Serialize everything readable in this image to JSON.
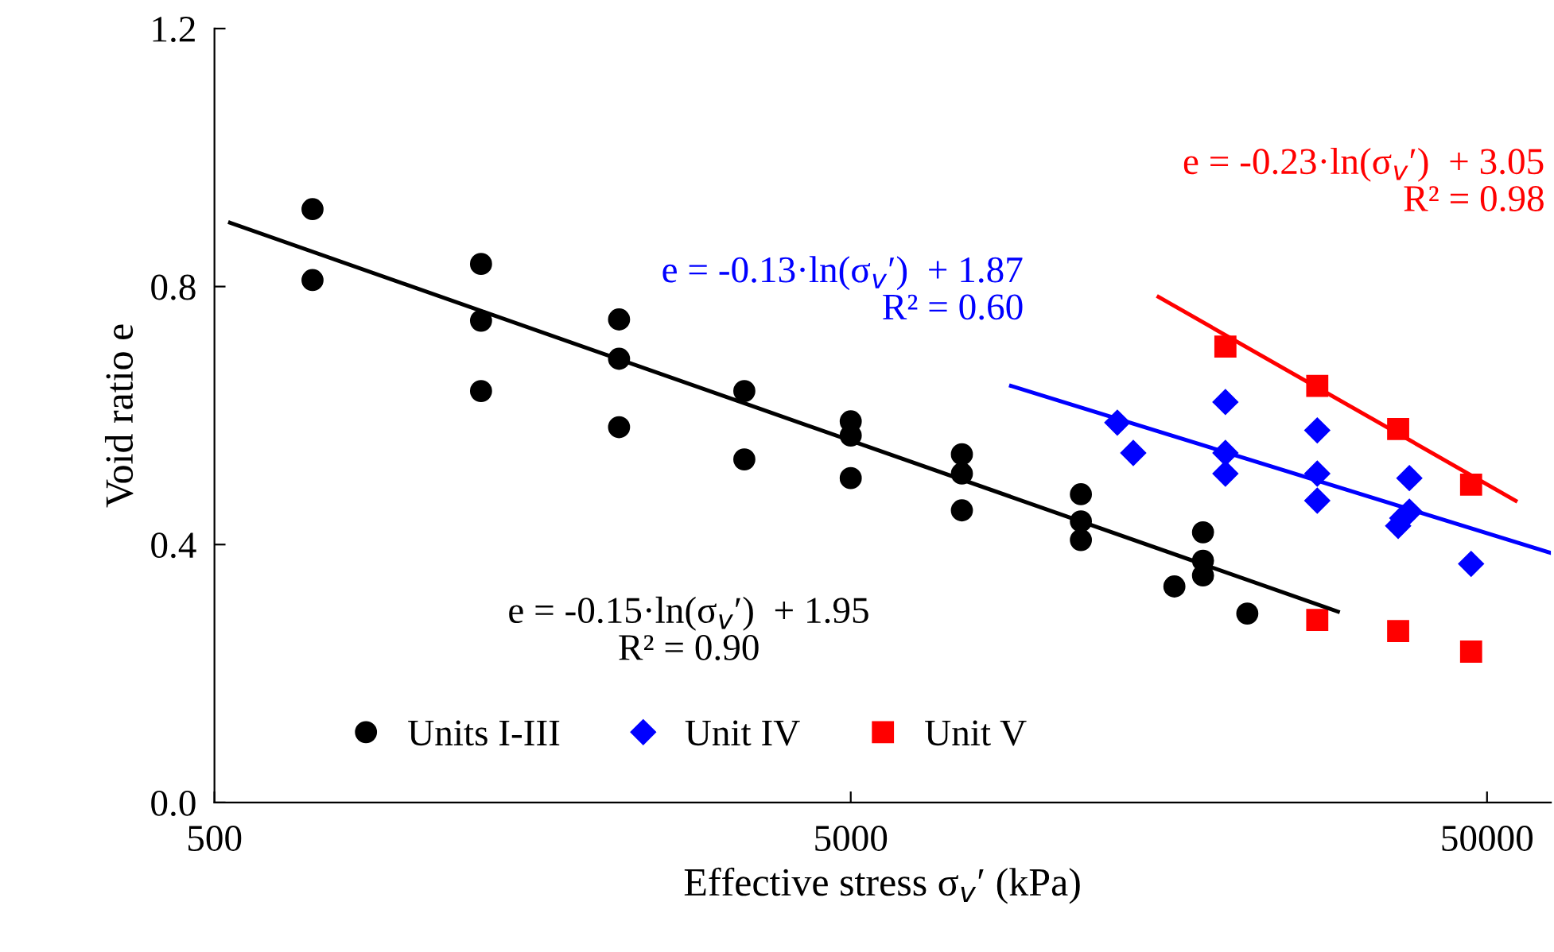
{
  "chart_data": {
    "type": "scatter",
    "xlabel": "Effective stress σ$_{v}$′ (kPa)",
    "ylabel": "Void ratio e",
    "log": "x",
    "xlim": [
      500,
      63000
    ],
    "xticks": [
      500,
      5000,
      50000
    ],
    "ylim": [
      0,
      1.2
    ],
    "yticks": [
      {
        "value": 0,
        "label": "0.0"
      },
      {
        "value": 0.4,
        "label": "0.4"
      },
      {
        "value": 0.8,
        "label": "0.8"
      },
      {
        "value": 1.2,
        "label": "1.2"
      }
    ],
    "grid": false,
    "legend": "bottom left",
    "series": [
      {
        "name": "Units I-III",
        "color": "#000000",
        "marker": "circle",
        "x": [
          713,
          713,
          1312,
          1312,
          1312,
          2162,
          2162,
          2162,
          3402,
          3402,
          5000,
          5000,
          5000,
          7476,
          7476,
          7476,
          11500,
          11500,
          11500,
          16130,
          17890,
          17890,
          17890,
          21000
        ],
        "values": [
          0.92,
          0.81,
          0.835,
          0.747,
          0.638,
          0.749,
          0.688,
          0.582,
          0.638,
          0.532,
          0.591,
          0.569,
          0.503,
          0.54,
          0.51,
          0.453,
          0.478,
          0.436,
          0.407,
          0.335,
          0.419,
          0.375,
          0.352,
          0.293
        ]
      },
      {
        "name": "Unit IV",
        "color": "#0000ff",
        "marker": "diamond",
        "x": [
          13120,
          13900,
          19400,
          19400,
          19400,
          27050,
          27050,
          27050,
          36250,
          36800,
          37750,
          37750,
          47200
        ],
        "values": [
          0.589,
          0.542,
          0.621,
          0.542,
          0.51,
          0.577,
          0.51,
          0.468,
          0.429,
          0.441,
          0.503,
          0.451,
          0.37
        ]
      },
      {
        "name": "Unit V",
        "color": "#ff0000",
        "marker": "square",
        "x": [
          19400,
          27050,
          27050,
          36250,
          36250,
          47200,
          47200
        ],
        "values": [
          0.707,
          0.646,
          0.283,
          0.579,
          0.266,
          0.493,
          0.234
        ]
      },
      {
        "type": "line",
        "color": "#000000",
        "line_style": "solid",
        "x": [
          529,
          29150
        ],
        "values": [
          0.899,
          0.296
        ]
      },
      {
        "type": "line",
        "color": "#0000ff",
        "line_style": "solid",
        "x": [
          8930,
          63000
        ],
        "values": [
          0.646,
          0.387
        ]
      },
      {
        "type": "line",
        "color": "#ff0000",
        "line_style": "solid",
        "x": [
          15230,
          55450
        ],
        "values": [
          0.784,
          0.468
        ]
      }
    ],
    "annotations": [
      "e = -0.15·ln(σ$_{v}$′)  + 1.95\nR² = 0.90",
      "e = -0.13·ln(σ$_{v}$′)  + 1.87\nR² = 0.60",
      "e = -0.23·ln(σ$_{v}$′)  + 3.05\nR² = 0.98"
    ]
  }
}
